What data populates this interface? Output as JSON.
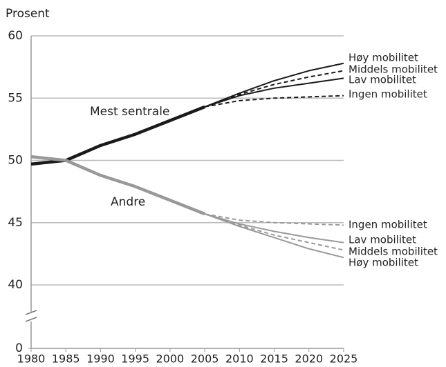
{
  "chart_data": {
    "type": "line",
    "y_label": "Prosent",
    "x": [
      1980,
      1985,
      1990,
      1995,
      2000,
      2005,
      2010,
      2015,
      2020,
      2025
    ],
    "xlim": [
      1980,
      2025
    ],
    "xticks": [
      1980,
      1985,
      1990,
      1995,
      2000,
      2005,
      2010,
      2015,
      2020,
      2025
    ],
    "ylim": [
      0,
      60
    ],
    "yticks": [
      0,
      40,
      45,
      50,
      55,
      60
    ],
    "axis_break": true,
    "grid": true,
    "annotations": [
      {
        "text": "Mest sentrale"
      },
      {
        "text": "Andre"
      }
    ],
    "series": [
      {
        "name": "Mest sentrale",
        "color": "#1a1a1a",
        "style": "thick",
        "values": [
          49.7,
          50.0,
          51.2,
          52.1,
          53.2,
          54.3,
          null,
          null,
          null,
          null
        ]
      },
      {
        "name": "Høy mobilitet",
        "color": "#1a1a1a",
        "style": "solid",
        "values": [
          null,
          null,
          null,
          null,
          null,
          54.3,
          55.4,
          56.4,
          57.2,
          57.8
        ]
      },
      {
        "name": "Middels mobilitet",
        "color": "#1a1a1a",
        "style": "dashed",
        "values": [
          null,
          null,
          null,
          null,
          null,
          54.3,
          55.3,
          56.1,
          56.7,
          57.2
        ]
      },
      {
        "name": "Lav mobilitet",
        "color": "#1a1a1a",
        "style": "solid",
        "values": [
          null,
          null,
          null,
          null,
          null,
          54.3,
          55.2,
          55.8,
          56.2,
          56.6
        ]
      },
      {
        "name": "Ingen mobilitet",
        "color": "#1a1a1a",
        "style": "dashed",
        "values": [
          null,
          null,
          null,
          null,
          null,
          54.3,
          54.8,
          55.0,
          55.1,
          55.2
        ]
      },
      {
        "name": "Andre",
        "color": "#999999",
        "style": "thick",
        "values": [
          50.3,
          50.0,
          48.8,
          47.9,
          46.8,
          45.7,
          null,
          null,
          null,
          null
        ]
      },
      {
        "name": "Ingen mobilitet",
        "color": "#999999",
        "style": "dashed",
        "values": [
          null,
          null,
          null,
          null,
          null,
          45.7,
          45.2,
          45.0,
          44.9,
          44.8
        ]
      },
      {
        "name": "Lav mobilitet",
        "color": "#999999",
        "style": "solid",
        "values": [
          null,
          null,
          null,
          null,
          null,
          45.7,
          44.9,
          44.3,
          43.8,
          43.4
        ]
      },
      {
        "name": "Middels mobilitet",
        "color": "#999999",
        "style": "dashed",
        "values": [
          null,
          null,
          null,
          null,
          null,
          45.7,
          44.8,
          44.0,
          43.4,
          42.8
        ]
      },
      {
        "name": "Høy mobilitet",
        "color": "#999999",
        "style": "solid",
        "values": [
          null,
          null,
          null,
          null,
          null,
          45.7,
          44.7,
          43.8,
          42.9,
          42.2
        ]
      }
    ]
  }
}
